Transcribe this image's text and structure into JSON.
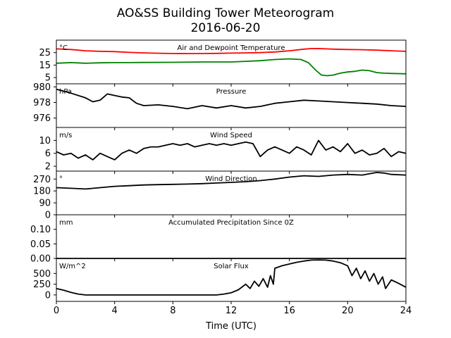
{
  "chart_data": {
    "type": "line",
    "title": "AO&SS Building Tower Meteorogram",
    "subtitle": "2016-06-20",
    "xlabel": "Time (UTC)",
    "xlim": [
      0,
      24
    ],
    "xticks": [
      0,
      4,
      8,
      12,
      16,
      20,
      24
    ],
    "xtick_labels": [
      "0",
      "4",
      "8",
      "12",
      "16",
      "20",
      "24"
    ],
    "panels": [
      {
        "name": "temperature",
        "title": "Air and Dewpoint Temperature",
        "unit": "°C",
        "ylim": [
          0,
          35
        ],
        "yticks": [
          5,
          15,
          25
        ],
        "ytick_labels": [
          "5",
          "15",
          "25"
        ],
        "series": [
          {
            "color": "#ff0000",
            "x": [
              0,
              1,
              2,
              3,
              4,
              5,
              6,
              7,
              8,
              9,
              10,
              11,
              12,
              13,
              14,
              15,
              16,
              17,
              17.5,
              18,
              18.5,
              19,
              20,
              21,
              22,
              23,
              24
            ],
            "values": [
              28,
              27.5,
              26.5,
              26,
              25.8,
              25.2,
              24.8,
              24.5,
              24.3,
              24.2,
              24.3,
              24.4,
              24.6,
              24.8,
              25,
              25.5,
              26.5,
              27.8,
              28.2,
              28.3,
              28,
              27.8,
              27.5,
              27.3,
              27,
              26.5,
              26
            ]
          },
          {
            "color": "#008000",
            "x": [
              0,
              1,
              2,
              3,
              4,
              5,
              6,
              8,
              10,
              12,
              13,
              14,
              15,
              16,
              16.8,
              17.3,
              17.8,
              18.2,
              18.6,
              19,
              19.5,
              20,
              20.5,
              21,
              21.5,
              22,
              22.5,
              23,
              24
            ],
            "values": [
              16.5,
              17,
              16.5,
              16.8,
              17,
              17,
              17.1,
              17.2,
              17.5,
              17.5,
              18,
              18.5,
              19.5,
              20,
              19.5,
              17,
              11,
              7,
              6.5,
              7,
              8.5,
              9.5,
              10,
              11,
              10.5,
              9,
              8.5,
              8.3,
              8
            ]
          }
        ]
      },
      {
        "name": "pressure",
        "title": "Pressure",
        "unit": "hPa",
        "ylim": [
          974.8,
          980.4
        ],
        "yticks": [
          976,
          978,
          980
        ],
        "ytick_labels": [
          "976",
          "978",
          "980"
        ],
        "series": [
          {
            "color": "#000000",
            "x": [
              0,
              1,
              2,
              2.5,
              3,
              3.5,
              4,
              4.5,
              5,
              5.5,
              6,
              7,
              8,
              9,
              10,
              11,
              12,
              13,
              14,
              15,
              16,
              17,
              18,
              19,
              20,
              21,
              22,
              23,
              24
            ],
            "values": [
              979.7,
              979.2,
              978.6,
              978.1,
              978.3,
              979.1,
              978.9,
              978.7,
              978.6,
              977.9,
              977.6,
              977.7,
              977.5,
              977.2,
              977.6,
              977.3,
              977.6,
              977.3,
              977.5,
              977.9,
              978.1,
              978.3,
              978.2,
              978.1,
              978.0,
              977.9,
              977.8,
              977.6,
              977.5
            ]
          }
        ]
      },
      {
        "name": "wind_speed",
        "title": "Wind Speed",
        "unit": "m/s",
        "ylim": [
          0.5,
          14
        ],
        "yticks": [
          2,
          6,
          10
        ],
        "ytick_labels": [
          "2",
          "6",
          "10"
        ],
        "series": [
          {
            "color": "#000000",
            "x": [
              0,
              0.5,
              1,
              1.5,
              2,
              2.5,
              3,
              3.5,
              4,
              4.5,
              5,
              5.5,
              6,
              6.5,
              7,
              7.5,
              8,
              8.5,
              9,
              9.5,
              10,
              10.5,
              11,
              11.5,
              12,
              12.5,
              13,
              13.5,
              14,
              14.5,
              15,
              15.5,
              16,
              16.5,
              17,
              17.5,
              18,
              18.5,
              19,
              19.5,
              20,
              20.5,
              21,
              21.5,
              22,
              22.5,
              23,
              23.5,
              24
            ],
            "values": [
              6.5,
              5.5,
              6,
              4.5,
              5.5,
              4,
              6,
              5,
              4,
              6,
              7,
              6,
              7.5,
              8,
              8,
              8.5,
              9,
              8.5,
              9,
              8,
              8.5,
              9,
              8.5,
              9,
              8.5,
              9,
              9.5,
              9,
              5,
              7,
              8,
              7,
              6,
              8,
              7,
              5.5,
              10,
              7,
              8,
              6.5,
              9,
              6,
              7,
              5.5,
              6,
              7.5,
              5,
              6.5,
              6
            ]
          }
        ]
      },
      {
        "name": "wind_direction",
        "title": "Wind Direction",
        "unit": "°",
        "ylim": [
          0,
          330
        ],
        "yticks": [
          0,
          90,
          180,
          270
        ],
        "ytick_labels": [
          "0",
          "90",
          "180",
          "270"
        ],
        "series": [
          {
            "color": "#000000",
            "x": [
              0,
              1,
              2,
              3,
              4,
              5,
              6,
              7,
              8,
              9,
              10,
              11,
              12,
              13,
              14,
              15,
              16,
              17,
              18,
              19,
              20,
              21,
              22,
              22.5,
              23,
              24
            ],
            "values": [
              205,
              200,
              195,
              205,
              215,
              220,
              225,
              228,
              230,
              232,
              235,
              240,
              245,
              250,
              258,
              270,
              285,
              295,
              290,
              300,
              305,
              300,
              320,
              315,
              305,
              300
            ]
          }
        ]
      },
      {
        "name": "precipitation",
        "title": "Accumulated Precipitation Since 0Z",
        "unit": "mm",
        "ylim": [
          0,
          0.15
        ],
        "yticks": [
          0.0,
          0.05,
          0.1
        ],
        "ytick_labels": [
          "0.00",
          "0.05",
          "0.10"
        ],
        "series": [
          {
            "color": "#000000",
            "x": [
              0,
              24
            ],
            "values": [
              0,
              0
            ]
          }
        ]
      },
      {
        "name": "solar_flux",
        "title": "Solar Flux",
        "unit": "W/m^2",
        "ylim": [
          -150,
          850
        ],
        "yticks": [
          0,
          250,
          500
        ],
        "ytick_labels": [
          "0",
          "250",
          "500"
        ],
        "series": [
          {
            "color": "#000000",
            "x": [
              0,
              0.5,
              1,
              1.5,
              2,
              3,
              4,
              6,
              8,
              10,
              11,
              11.5,
              12,
              12.5,
              13,
              13.3,
              13.6,
              13.9,
              14.2,
              14.5,
              14.7,
              14.9,
              15,
              15.5,
              16,
              16.5,
              17,
              17.5,
              18,
              18.5,
              19,
              19.5,
              20,
              20.3,
              20.6,
              20.9,
              21.2,
              21.5,
              21.8,
              22.1,
              22.4,
              22.6,
              23,
              23.5,
              24
            ],
            "values": [
              150,
              110,
              60,
              20,
              0,
              0,
              0,
              0,
              0,
              0,
              0,
              20,
              50,
              120,
              250,
              150,
              320,
              200,
              380,
              180,
              450,
              250,
              620,
              680,
              720,
              760,
              790,
              810,
              815,
              810,
              790,
              750,
              680,
              450,
              620,
              380,
              560,
              320,
              500,
              250,
              420,
              150,
              350,
              270,
              180
            ]
          }
        ]
      }
    ]
  }
}
